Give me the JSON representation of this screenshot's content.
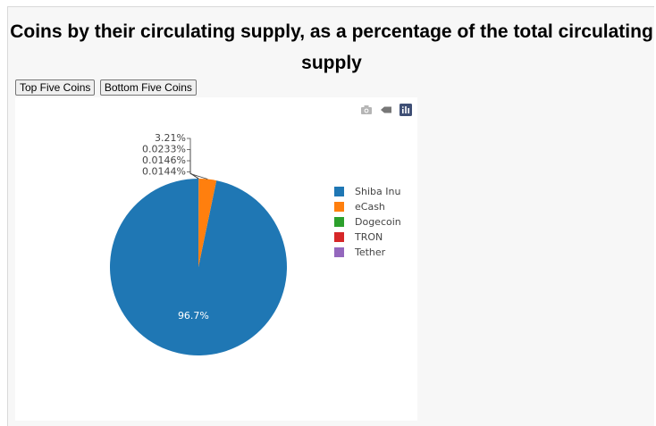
{
  "page": {
    "title": "Coins by their circulating supply, as a percentage of the total circulating supply"
  },
  "buttons": {
    "top_five": "Top Five Coins",
    "bottom_five": "Bottom Five Coins"
  },
  "modebar": [
    "camera-icon",
    "tag-icon",
    "plotly-logo-icon"
  ],
  "chart_data": {
    "type": "pie",
    "labels": [
      "Shiba Inu",
      "eCash",
      "Dogecoin",
      "TRON",
      "Tether"
    ],
    "values": [
      96.7,
      3.21,
      0.0233,
      0.0146,
      0.0144
    ],
    "text_labels": [
      "96.7%",
      "3.21%",
      "0.0233%",
      "0.0146%",
      "0.0144%"
    ],
    "colors": [
      "#1f77b4",
      "#ff7f0e",
      "#2ca02c",
      "#d62728",
      "#9467bd"
    ],
    "legend_position": "right",
    "title": ""
  }
}
